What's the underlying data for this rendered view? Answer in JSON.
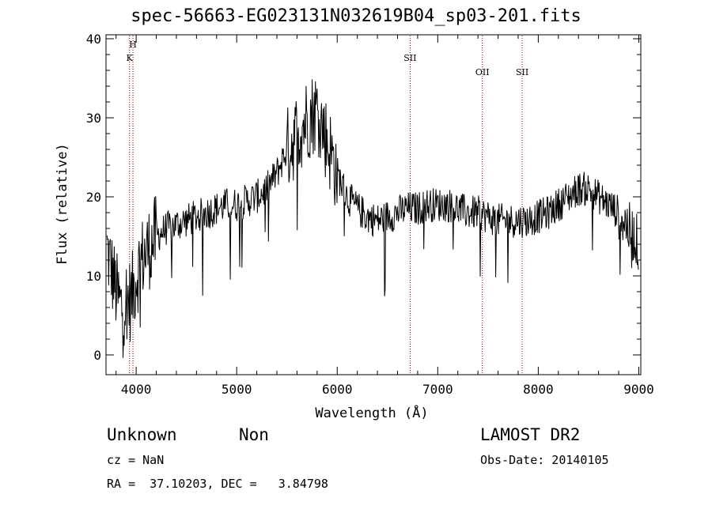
{
  "title": "spec-56663-EG023131N032619B04_sp03-201.fits",
  "info": {
    "class": "Unknown",
    "subclass": "Non",
    "survey": "LAMOST DR2",
    "cz": "cz = NaN",
    "obs_date": "Obs-Date: 20140105",
    "radec": "RA =  37.10203, DEC =   3.84798"
  },
  "colors": {
    "line": "#000000",
    "marker": "#8b0000",
    "axis": "#000000"
  },
  "chart_data": {
    "type": "line",
    "title": "spec-56663-EG023131N032619B04_sp03-201.fits",
    "xlabel": "Wavelength (Å)",
    "ylabel": "Flux (relative)",
    "xlim": [
      3700,
      9020
    ],
    "ylim": [
      -2.5,
      40.5
    ],
    "xticks": [
      4000,
      5000,
      6000,
      7000,
      8000,
      9000
    ],
    "yticks": [
      0,
      10,
      20,
      30,
      40
    ],
    "grid": false,
    "series": [
      {
        "x": [
          3700,
          3750,
          3800,
          3850,
          3900,
          3950,
          4000,
          4050,
          4100,
          4150,
          4200,
          4300,
          4400,
          4500,
          4600,
          4700,
          4800,
          4900,
          5000,
          5100,
          5200,
          5300,
          5400,
          5500,
          5600,
          5700,
          5800,
          5900,
          6000,
          6100,
          6200,
          6300,
          6400,
          6500,
          6600,
          6700,
          6800,
          6900,
          7000,
          7100,
          7200,
          7300,
          7400,
          7500,
          7600,
          7700,
          7800,
          7900,
          8000,
          8100,
          8200,
          8300,
          8400,
          8500,
          8600,
          8700,
          8800,
          8900,
          9000
        ],
        "y": [
          14,
          11,
          8,
          6,
          7,
          7,
          10,
          12,
          13,
          14,
          15,
          16,
          16.5,
          17,
          17.5,
          18,
          18.5,
          19,
          19,
          19.5,
          20,
          21,
          23,
          26,
          28,
          30,
          31,
          27,
          23,
          20,
          18.5,
          17.5,
          17,
          17.5,
          18,
          18.5,
          18.5,
          19,
          19,
          19,
          18.5,
          18,
          18,
          17.5,
          17,
          17,
          17,
          17,
          17.5,
          18,
          19,
          20,
          21,
          21,
          20,
          19,
          18,
          16,
          14
        ]
      }
    ],
    "annotations": [
      {
        "label": "H",
        "x": 3968
      },
      {
        "label": "K",
        "x": 3934
      },
      {
        "label": "SII",
        "x": 6725
      },
      {
        "label": "OII",
        "x": 7444
      },
      {
        "label": "SII",
        "x": 7840
      }
    ]
  }
}
